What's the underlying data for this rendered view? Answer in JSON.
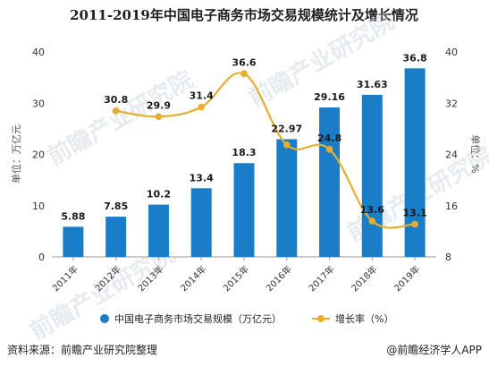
{
  "title": "2011-2019年中国电子商务市场交易规模统计及增长情况",
  "chart_data": {
    "type": "bar",
    "categories": [
      "2011年",
      "2012年",
      "2013年",
      "2014年",
      "2015年",
      "2016年",
      "2017年",
      "2018年",
      "2019年"
    ],
    "series": [
      {
        "name": "中国电子商务市场交易规模（万亿元）",
        "type": "bar",
        "axis": "left",
        "color": "#1a7dc8",
        "values": [
          5.88,
          7.85,
          10.2,
          13.4,
          18.3,
          22.97,
          29.16,
          31.63,
          36.8
        ],
        "labels": [
          "5.88",
          "7.85",
          "10.2",
          "13.4",
          "18.3",
          "22.97",
          "29.16",
          "31.63",
          "36.8"
        ]
      },
      {
        "name": "增长率（%）",
        "type": "line",
        "axis": "right",
        "color": "#e8ad2c",
        "values": [
          null,
          30.8,
          29.9,
          31.4,
          36.6,
          25.5,
          24.8,
          13.6,
          13.1
        ],
        "labels": [
          "",
          "30.8",
          "29.9",
          "31.4",
          "36.6",
          "",
          "24.8",
          "13.6",
          "13.1"
        ]
      }
    ],
    "y_left": {
      "label": "单位：万亿元",
      "lim": [
        0,
        40
      ],
      "ticks": [
        0,
        10,
        20,
        30,
        40
      ]
    },
    "y_right": {
      "label": "单位：%",
      "lim": [
        8,
        40
      ],
      "ticks": [
        8,
        16,
        24,
        32,
        40
      ]
    },
    "grid": false,
    "legend": "bottom"
  },
  "footer": {
    "source": "资料来源：前瞻产业研究院整理",
    "brand": "@前瞻经济学人APP"
  },
  "watermark": "前瞻产业研究院"
}
